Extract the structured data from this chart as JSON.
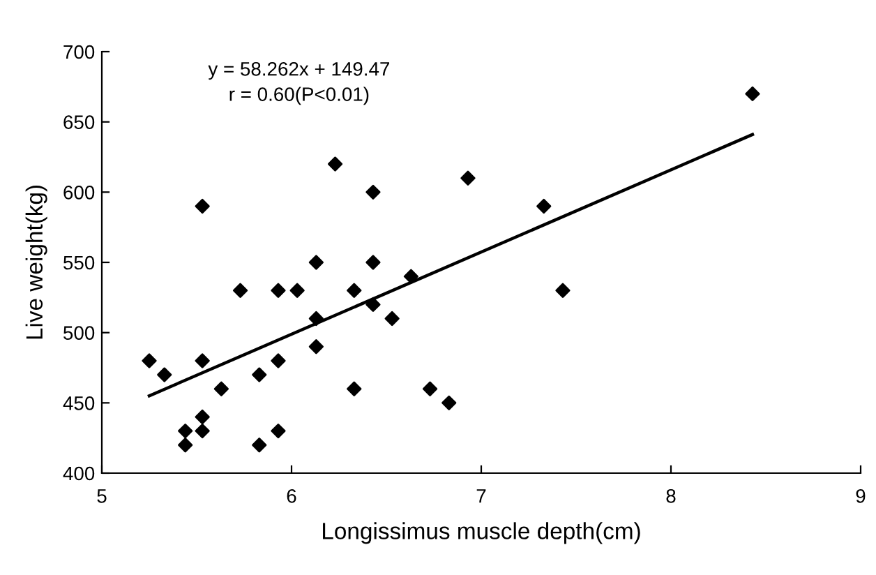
{
  "chart_data": {
    "type": "scatter",
    "xlabel": "Longissimus muscle depth(cm)",
    "ylabel": "Live weight(kg)",
    "annotations": [
      "y = 58.262x + 149.47",
      "r = 0.60(P<0.01)"
    ],
    "xlim": [
      5,
      9
    ],
    "xticks": [
      5,
      6,
      7,
      8,
      9
    ],
    "ylim": [
      400,
      700
    ],
    "yticks": [
      400,
      450,
      500,
      550,
      600,
      650,
      700
    ],
    "grid": false,
    "legend": false,
    "series": [
      {
        "marker": "diamond",
        "color": "#000000",
        "x": [
          5.25,
          5.33,
          5.44,
          5.44,
          5.53,
          5.53,
          5.53,
          5.53,
          5.63,
          5.73,
          5.83,
          5.83,
          5.93,
          5.93,
          5.93,
          6.03,
          6.13,
          6.13,
          6.13,
          6.23,
          6.33,
          6.33,
          6.43,
          6.43,
          6.43,
          6.53,
          6.63,
          6.73,
          6.83,
          6.93,
          7.33,
          7.43,
          8.43
        ],
        "values": [
          480,
          470,
          430,
          420,
          440,
          430,
          480,
          590,
          460,
          530,
          470,
          420,
          530,
          480,
          430,
          530,
          550,
          510,
          490,
          620,
          530,
          460,
          600,
          550,
          520,
          510,
          540,
          460,
          450,
          610,
          590,
          530,
          670
        ]
      },
      {
        "type": "line",
        "marker": "none",
        "color": "#000000",
        "line_style": "solid",
        "x": [
          5.25,
          8.43
        ],
        "values": [
          455,
          641
        ]
      }
    ]
  }
}
